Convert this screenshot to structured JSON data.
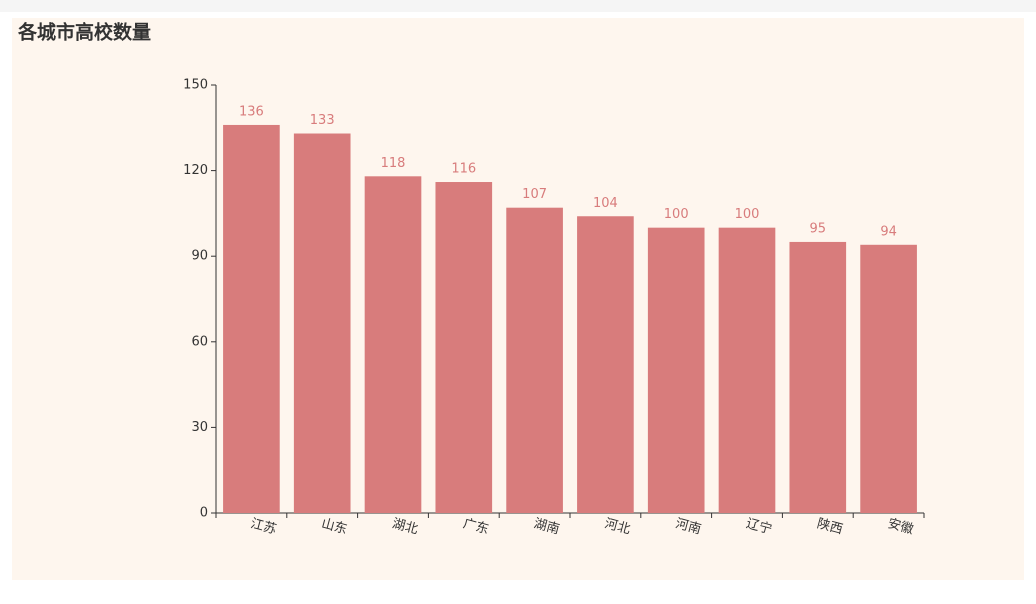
{
  "chart_data": {
    "type": "bar",
    "title": "各城市高校数量",
    "categories": [
      "江苏",
      "山东",
      "湖北",
      "广东",
      "湖南",
      "河北",
      "河南",
      "辽宁",
      "陕西",
      "安徽"
    ],
    "values": [
      136,
      133,
      118,
      116,
      107,
      104,
      100,
      100,
      95,
      94
    ],
    "color": "#d87c7c",
    "ylim": [
      0,
      150
    ],
    "yticks": [
      0,
      30,
      60,
      90,
      120,
      150
    ],
    "grid": false
  }
}
